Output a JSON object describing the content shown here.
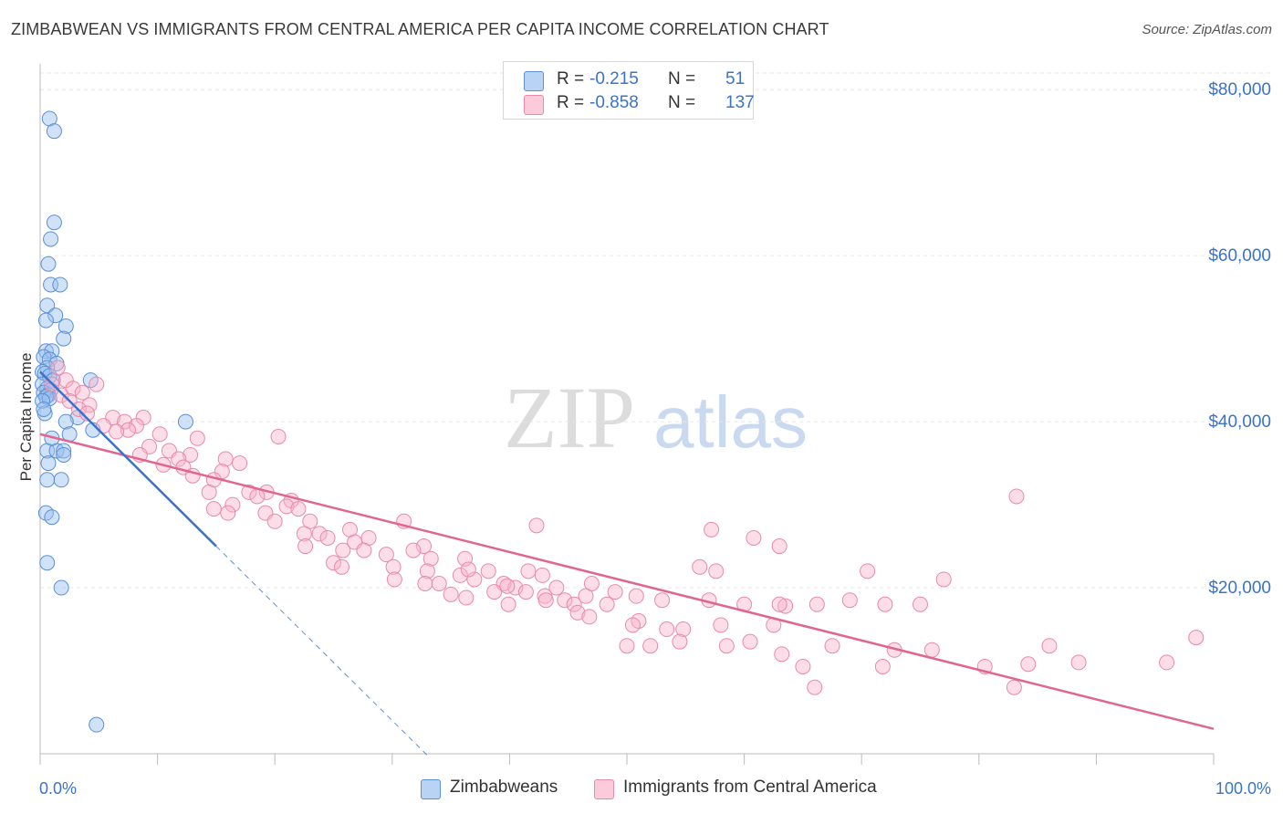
{
  "title": "ZIMBABWEAN VS IMMIGRANTS FROM CENTRAL AMERICA PER CAPITA INCOME CORRELATION CHART",
  "source": "Source: ZipAtlas.com",
  "watermark": {
    "zip": "ZIP",
    "atlas": "atlas"
  },
  "legend": {
    "rows": [
      {
        "r_label": "R =",
        "r_value": "-0.215",
        "n_label": "N =",
        "n_value": "51",
        "fill": "#a9c8f0",
        "stroke": "#5b8fd6"
      },
      {
        "r_label": "R =",
        "r_value": "-0.858",
        "n_label": "N =",
        "n_value": "137",
        "fill": "#f8bcd0",
        "stroke": "#e88aa8"
      }
    ]
  },
  "bottom_legend": [
    "Zimbabweans",
    "Immigrants from Central America"
  ],
  "chart_data": {
    "type": "scatter",
    "ylabel": "Per Capita Income",
    "xlabel": "",
    "xlim": [
      0,
      100
    ],
    "ylim": [
      0,
      82000
    ],
    "x_tick_labels": {
      "left": "0.0%",
      "right": "100.0%"
    },
    "y_ticks": [
      {
        "value": 20000,
        "label": "$20,000"
      },
      {
        "value": 40000,
        "label": "$40,000"
      },
      {
        "value": 60000,
        "label": "$60,000"
      },
      {
        "value": 80000,
        "label": "$80,000"
      }
    ],
    "colors": {
      "blue_fill": "rgba(150,190,240,0.45)",
      "blue_stroke": "#5b8fd6",
      "blue_line": "#3a73c9",
      "pink_fill": "rgba(248,180,205,0.45)",
      "pink_stroke": "#e88aa8",
      "pink_line": "#e06592",
      "grid": "#e6e6e6",
      "tick_label": "#3a73c9"
    },
    "series": [
      {
        "name": "Zimbabweans",
        "trend": {
          "x0": 0,
          "y0": 46000,
          "x1": 15,
          "y1": 25000,
          "dash_to_x": 33
        },
        "points": [
          [
            0.8,
            76500
          ],
          [
            1.2,
            75000
          ],
          [
            1.2,
            64000
          ],
          [
            0.9,
            62000
          ],
          [
            0.7,
            59000
          ],
          [
            0.9,
            56500
          ],
          [
            1.7,
            56500
          ],
          [
            0.6,
            54000
          ],
          [
            1.3,
            52800
          ],
          [
            0.5,
            52200
          ],
          [
            2.2,
            51500
          ],
          [
            2.0,
            50000
          ],
          [
            0.5,
            48500
          ],
          [
            1.0,
            48500
          ],
          [
            0.3,
            47800
          ],
          [
            0.8,
            47500
          ],
          [
            1.4,
            47000
          ],
          [
            0.6,
            46500
          ],
          [
            0.2,
            46000
          ],
          [
            0.4,
            45800
          ],
          [
            0.8,
            45500
          ],
          [
            1.1,
            45000
          ],
          [
            0.2,
            44500
          ],
          [
            0.6,
            44000
          ],
          [
            0.9,
            43800
          ],
          [
            0.3,
            43500
          ],
          [
            0.7,
            43200
          ],
          [
            0.5,
            43000
          ],
          [
            0.8,
            42800
          ],
          [
            0.2,
            42500
          ],
          [
            4.3,
            45000
          ],
          [
            0.4,
            41000
          ],
          [
            3.2,
            40500
          ],
          [
            2.2,
            40000
          ],
          [
            4.5,
            39000
          ],
          [
            12.4,
            40000
          ],
          [
            0.6,
            36500
          ],
          [
            1.4,
            36500
          ],
          [
            2.0,
            36500
          ],
          [
            2.0,
            36000
          ],
          [
            0.7,
            35000
          ],
          [
            1.8,
            33000
          ],
          [
            0.6,
            33000
          ],
          [
            0.5,
            29000
          ],
          [
            1.0,
            28500
          ],
          [
            0.6,
            23000
          ],
          [
            1.8,
            20000
          ],
          [
            4.8,
            3500
          ],
          [
            0.3,
            41500
          ],
          [
            1.0,
            38000
          ],
          [
            2.5,
            38500
          ]
        ]
      },
      {
        "name": "Immigrants from Central America",
        "trend": {
          "x0": 0,
          "y0": 38500,
          "x1": 100,
          "y1": 3000
        },
        "points": [
          [
            1.5,
            46500
          ],
          [
            2.2,
            45000
          ],
          [
            1.0,
            44500
          ],
          [
            2.8,
            44000
          ],
          [
            4.8,
            44500
          ],
          [
            3.6,
            43500
          ],
          [
            1.8,
            43200
          ],
          [
            2.5,
            42500
          ],
          [
            4.2,
            42000
          ],
          [
            3.3,
            41500
          ],
          [
            4.0,
            41000
          ],
          [
            6.2,
            40500
          ],
          [
            8.8,
            40500
          ],
          [
            7.2,
            40000
          ],
          [
            5.4,
            39500
          ],
          [
            8.2,
            39500
          ],
          [
            7.5,
            39000
          ],
          [
            6.5,
            38800
          ],
          [
            10.2,
            38500
          ],
          [
            13.4,
            38000
          ],
          [
            20.3,
            38200
          ],
          [
            9.3,
            37000
          ],
          [
            11.0,
            36500
          ],
          [
            8.5,
            36000
          ],
          [
            12.8,
            36000
          ],
          [
            11.8,
            35500
          ],
          [
            15.8,
            35500
          ],
          [
            10.5,
            34800
          ],
          [
            12.2,
            34500
          ],
          [
            17.0,
            35000
          ],
          [
            13.0,
            33500
          ],
          [
            15.5,
            34000
          ],
          [
            14.8,
            33000
          ],
          [
            14.4,
            31500
          ],
          [
            17.8,
            31500
          ],
          [
            19.3,
            31500
          ],
          [
            16.4,
            30000
          ],
          [
            18.5,
            31000
          ],
          [
            21.4,
            30500
          ],
          [
            21.0,
            29800
          ],
          [
            22.0,
            29500
          ],
          [
            19.2,
            29000
          ],
          [
            14.8,
            29500
          ],
          [
            16.0,
            29000
          ],
          [
            20.0,
            28000
          ],
          [
            23.0,
            28000
          ],
          [
            26.4,
            27000
          ],
          [
            23.8,
            26500
          ],
          [
            22.5,
            26500
          ],
          [
            24.5,
            26000
          ],
          [
            28.0,
            26000
          ],
          [
            26.8,
            25500
          ],
          [
            22.6,
            25000
          ],
          [
            32.7,
            25000
          ],
          [
            25.8,
            24500
          ],
          [
            27.6,
            24500
          ],
          [
            29.5,
            24000
          ],
          [
            31.8,
            24500
          ],
          [
            33.3,
            23500
          ],
          [
            36.2,
            23500
          ],
          [
            25.0,
            23000
          ],
          [
            25.7,
            22500
          ],
          [
            30.1,
            22500
          ],
          [
            33.0,
            22000
          ],
          [
            35.8,
            21500
          ],
          [
            38.2,
            22000
          ],
          [
            41.6,
            22000
          ],
          [
            42.8,
            21500
          ],
          [
            30.2,
            21000
          ],
          [
            32.8,
            20500
          ],
          [
            34.0,
            20500
          ],
          [
            37.0,
            21000
          ],
          [
            39.5,
            20500
          ],
          [
            44.0,
            20000
          ],
          [
            47.0,
            20500
          ],
          [
            40.5,
            20000
          ],
          [
            38.7,
            19500
          ],
          [
            41.4,
            19500
          ],
          [
            43.0,
            19000
          ],
          [
            44.7,
            18500
          ],
          [
            46.5,
            19000
          ],
          [
            49.0,
            19500
          ],
          [
            50.8,
            19000
          ],
          [
            35.0,
            19200
          ],
          [
            36.3,
            18800
          ],
          [
            39.9,
            18000
          ],
          [
            43.1,
            18500
          ],
          [
            45.5,
            18000
          ],
          [
            48.3,
            18000
          ],
          [
            53.0,
            18500
          ],
          [
            57.0,
            18500
          ],
          [
            60.0,
            18000
          ],
          [
            63.5,
            17800
          ],
          [
            66.2,
            18000
          ],
          [
            69.0,
            18500
          ],
          [
            72.0,
            18000
          ],
          [
            45.8,
            17000
          ],
          [
            46.8,
            16500
          ],
          [
            51.0,
            16000
          ],
          [
            54.8,
            15000
          ],
          [
            50.5,
            15500
          ],
          [
            53.4,
            15000
          ],
          [
            58.0,
            15500
          ],
          [
            62.5,
            15500
          ],
          [
            67.5,
            13000
          ],
          [
            72.8,
            12500
          ],
          [
            50.0,
            13000
          ],
          [
            52.0,
            13000
          ],
          [
            54.5,
            13500
          ],
          [
            58.5,
            13000
          ],
          [
            60.5,
            13500
          ],
          [
            63.2,
            12000
          ],
          [
            65.0,
            10500
          ],
          [
            71.8,
            10500
          ],
          [
            76.0,
            12500
          ],
          [
            80.5,
            10500
          ],
          [
            83.0,
            8000
          ],
          [
            86.0,
            13000
          ],
          [
            88.5,
            11000
          ],
          [
            96.0,
            11000
          ],
          [
            98.5,
            14000
          ],
          [
            84.2,
            10800
          ],
          [
            66.0,
            8000
          ],
          [
            63.0,
            25000
          ],
          [
            57.2,
            27000
          ],
          [
            56.2,
            22500
          ],
          [
            60.8,
            26000
          ],
          [
            63.0,
            18000
          ],
          [
            70.5,
            22000
          ],
          [
            75.0,
            18000
          ],
          [
            77.0,
            21000
          ],
          [
            83.2,
            31000
          ],
          [
            42.3,
            27500
          ],
          [
            31.0,
            28000
          ],
          [
            36.5,
            22200
          ],
          [
            39.8,
            20200
          ],
          [
            57.6,
            22000
          ]
        ]
      }
    ]
  }
}
